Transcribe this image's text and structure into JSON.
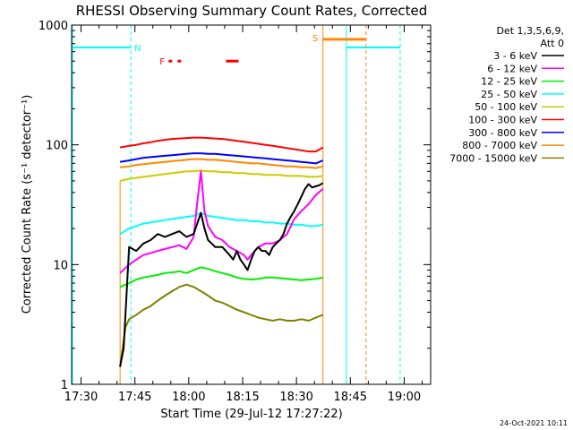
{
  "chart_data": {
    "type": "line",
    "title": "RHESSI Observing Summary Count Rates, Corrected",
    "xlabel": "Start Time (29-Jul-12 17:27:22)",
    "ylabel": "Corrected Count Rate (s⁻¹ detector⁻¹)",
    "yscale": "log",
    "ylim": [
      1,
      1000
    ],
    "xlim_minutes_after_17_27_22": [
      0,
      100
    ],
    "x_ticks": [
      {
        "label": "17:30",
        "minute": 2.63
      },
      {
        "label": "17:45",
        "minute": 17.63
      },
      {
        "label": "18:00",
        "minute": 32.63
      },
      {
        "label": "18:15",
        "minute": 47.63
      },
      {
        "label": "18:30",
        "minute": 62.63
      },
      {
        "label": "18:45",
        "minute": 77.63
      },
      {
        "label": "19:00",
        "minute": 92.63
      }
    ],
    "y_ticks": [
      {
        "label": "1",
        "value": 1
      },
      {
        "label": "10",
        "value": 10
      },
      {
        "label": "100",
        "value": 100
      },
      {
        "label": "1000",
        "value": 1000
      }
    ],
    "legend": {
      "placement": "right",
      "header": [
        "Det 1,3,5,6,9,",
        "Att 0"
      ]
    },
    "series": [
      {
        "name": "3 - 6 keV",
        "color": "#000000",
        "x": [
          13.5,
          14.5,
          16,
          18,
          20,
          22,
          24,
          26,
          28,
          30,
          32,
          34,
          36,
          37,
          38,
          39,
          40,
          42,
          44,
          45,
          46,
          47,
          48,
          49,
          50,
          51,
          52,
          53,
          54,
          55,
          56,
          57,
          58,
          59,
          60,
          61,
          62,
          63,
          64,
          65,
          66,
          67,
          68,
          69,
          70
        ],
        "y": [
          1.4,
          2,
          14,
          13,
          15,
          16,
          18,
          17,
          18,
          19,
          17,
          18,
          27,
          20,
          16,
          15,
          14,
          14,
          12,
          11,
          13,
          11,
          10,
          9,
          11,
          13,
          14,
          13,
          13,
          12,
          14,
          15,
          16,
          18,
          22,
          25,
          28,
          32,
          37,
          43,
          47,
          44,
          45,
          46,
          48
        ]
      },
      {
        "name": "6 - 12 keV",
        "color": "#ff00ff",
        "x": [
          13.5,
          16,
          18,
          20,
          22,
          24,
          26,
          28,
          30,
          32,
          34,
          35,
          36,
          37,
          38,
          40,
          42,
          44,
          46,
          48,
          49,
          50,
          52,
          54,
          56,
          58,
          60,
          62,
          64,
          66,
          68,
          70
        ],
        "y": [
          8.5,
          10,
          11,
          12,
          12.5,
          13,
          13.5,
          14,
          14.5,
          13.5,
          17,
          33,
          60,
          28,
          21,
          17,
          16,
          14,
          13,
          12,
          11,
          12,
          14,
          15,
          15,
          16,
          18,
          24,
          28,
          32,
          38,
          43
        ]
      },
      {
        "name": "12 - 25 keV",
        "color": "#00ee00",
        "x": [
          13.5,
          16,
          18,
          20,
          22,
          24,
          26,
          28,
          30,
          32,
          34,
          36,
          38,
          40,
          42,
          44,
          46,
          48,
          50,
          52,
          54,
          56,
          58,
          60,
          62,
          64,
          66,
          68,
          70
        ],
        "y": [
          6.5,
          7,
          7.5,
          7.8,
          8,
          8.2,
          8.5,
          8.6,
          8.8,
          8.5,
          9,
          9.5,
          9.2,
          8.8,
          8.5,
          8.2,
          7.8,
          7.6,
          7.5,
          7.6,
          7.8,
          7.8,
          7.7,
          7.6,
          7.5,
          7.4,
          7.5,
          7.6,
          7.8
        ]
      },
      {
        "name": "25 - 50 keV",
        "color": "#00ffff",
        "x": [
          13.5,
          16,
          18,
          20,
          22,
          24,
          26,
          28,
          30,
          32,
          34,
          36,
          38,
          40,
          42,
          44,
          46,
          48,
          50,
          52,
          54,
          56,
          58,
          60,
          62,
          64,
          66,
          68,
          70
        ],
        "y": [
          18,
          20,
          21,
          22,
          22.5,
          23,
          23.5,
          24,
          24.5,
          25,
          25.5,
          27,
          25.5,
          25,
          24.5,
          24,
          23.5,
          23.5,
          23,
          23,
          22.5,
          22.5,
          22,
          22,
          21.5,
          21.5,
          21,
          21,
          21.5
        ]
      },
      {
        "name": "50 - 100 keV",
        "color": "#cccc00",
        "x": [
          13.5,
          16,
          18,
          20,
          22,
          24,
          26,
          28,
          30,
          32,
          34,
          36,
          38,
          40,
          42,
          44,
          46,
          48,
          50,
          52,
          54,
          56,
          58,
          60,
          62,
          64,
          66,
          68,
          70
        ],
        "y": [
          50,
          52,
          53,
          54,
          55,
          56,
          57,
          58,
          59,
          60,
          60,
          61,
          60,
          60,
          59,
          59,
          58,
          58,
          57,
          57,
          56,
          56,
          56,
          55,
          55,
          55,
          54,
          54,
          55
        ]
      },
      {
        "name": "100 - 300 keV",
        "color": "#ff0000",
        "x": [
          13.5,
          16,
          18,
          20,
          22,
          24,
          26,
          28,
          30,
          32,
          34,
          36,
          38,
          40,
          42,
          44,
          46,
          48,
          50,
          52,
          54,
          56,
          58,
          60,
          62,
          64,
          66,
          68,
          70
        ],
        "y": [
          95,
          98,
          100,
          103,
          105,
          108,
          110,
          112,
          113,
          114,
          115,
          115,
          114,
          113,
          112,
          110,
          108,
          106,
          104,
          102,
          100,
          98,
          96,
          94,
          92,
          90,
          88,
          88,
          95
        ]
      },
      {
        "name": "300 - 800 keV",
        "color": "#0000ff",
        "x": [
          13.5,
          16,
          18,
          20,
          22,
          24,
          26,
          28,
          30,
          32,
          34,
          36,
          38,
          40,
          42,
          44,
          46,
          48,
          50,
          52,
          54,
          56,
          58,
          60,
          62,
          64,
          66,
          68,
          70
        ],
        "y": [
          72,
          74,
          76,
          78,
          79,
          80,
          81,
          82,
          83,
          84,
          85,
          85,
          84,
          84,
          83,
          82,
          81,
          80,
          79,
          78,
          77,
          76,
          75,
          74,
          73,
          72,
          71,
          70,
          74
        ]
      },
      {
        "name": "800 - 7000 keV",
        "color": "#ff8800",
        "x": [
          13.5,
          16,
          18,
          20,
          22,
          24,
          26,
          28,
          30,
          32,
          34,
          36,
          38,
          40,
          42,
          44,
          46,
          48,
          50,
          52,
          54,
          56,
          58,
          60,
          62,
          64,
          66,
          68,
          70
        ],
        "y": [
          65,
          66,
          68,
          69,
          70,
          71,
          72,
          73,
          74,
          75,
          76,
          76,
          75,
          75,
          74,
          73,
          72,
          71,
          70,
          70,
          69,
          68,
          67,
          66,
          66,
          65,
          65,
          64,
          66
        ]
      },
      {
        "name": "7000 - 15000 keV",
        "color": "#808000",
        "x": [
          13.5,
          15,
          16,
          18,
          20,
          22,
          24,
          26,
          28,
          30,
          32,
          34,
          36,
          38,
          40,
          42,
          44,
          46,
          48,
          50,
          52,
          54,
          56,
          58,
          60,
          62,
          64,
          66,
          68,
          70
        ],
        "y": [
          1.4,
          3,
          3.5,
          3.8,
          4.2,
          4.5,
          5,
          5.5,
          6,
          6.5,
          6.8,
          6.5,
          6,
          5.5,
          5,
          4.8,
          4.5,
          4.2,
          4,
          3.8,
          3.6,
          3.5,
          3.4,
          3.5,
          3.4,
          3.4,
          3.5,
          3.4,
          3.6,
          3.8
        ]
      }
    ],
    "flags": {
      "N_label": "N",
      "F_label": "F",
      "S_label": "S",
      "night_level": 650,
      "night_color": "#00ffff",
      "night_segments": [
        [
          0,
          16.5
        ],
        [
          76.5,
          91.5
        ]
      ],
      "night_dashed_lines": [
        16.5,
        91.5
      ],
      "night_solid_lines": [
        76.5
      ],
      "saa_level": 760,
      "saa_color": "#ff8800",
      "saa_segment": [
        70,
        82
      ],
      "saa_solid_lines": [
        70
      ],
      "saa_dashed_lines": [
        82
      ],
      "flare_color": "#ff0000",
      "flare_level": 500,
      "flare_segments": [
        [
          27,
          28
        ],
        [
          29.5,
          30.5
        ],
        [
          43,
          46.5
        ]
      ],
      "data_start_line": [
        13.5
      ],
      "data_start_color": "#ff8800"
    },
    "grid": false
  },
  "footer": {
    "timestamp": "24-Oct-2021 10:11"
  }
}
